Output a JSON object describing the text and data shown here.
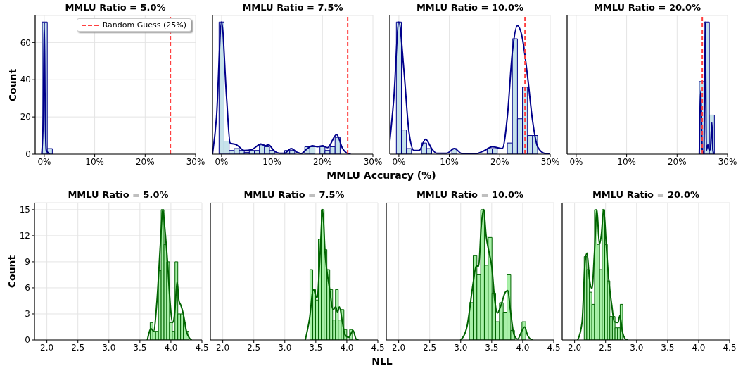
{
  "chart_data": [
    {
      "type": "histogram",
      "title": "MMLU Ratio = 5.0%",
      "ylabel": "Count",
      "xlim": [
        -1.8,
        30
      ],
      "ylim": [
        0,
        74.5
      ],
      "xticks": [
        {
          "value": 0,
          "label": "0%"
        },
        {
          "value": 10,
          "label": "10%"
        },
        {
          "value": 20,
          "label": "20%"
        },
        {
          "value": 30,
          "label": "30%"
        }
      ],
      "yticks": [
        0,
        20,
        40,
        60
      ],
      "grid": true,
      "legend": "top right",
      "ref_lines": [
        {
          "axis": "x",
          "value": 25,
          "label": "Random Guess (25%)",
          "color": "#ff4040",
          "line_style": "dashed"
        }
      ],
      "series": [
        {
          "type": "histogram",
          "bins": [
            -0.4,
            0.6,
            1.6
          ],
          "values": [
            71,
            3
          ],
          "color": "#c6e2ea"
        },
        {
          "type": "line",
          "marker": "none",
          "x": [
            -0.5,
            -0.2,
            0,
            0.2,
            0.4,
            0.7,
            1.0
          ],
          "values": [
            0,
            20,
            71,
            20,
            2,
            1,
            0
          ],
          "color": "#00008b"
        }
      ]
    },
    {
      "type": "histogram",
      "title": "MMLU Ratio = 7.5%",
      "xlabel": "MMLU Accuracy (%)",
      "tick_labels": "x",
      "xlim": [
        -1.8,
        30
      ],
      "ylim": [
        0,
        74.5
      ],
      "xticks": [
        {
          "value": 0,
          "label": "0%"
        },
        {
          "value": 10,
          "label": "10%"
        },
        {
          "value": 20,
          "label": "20%"
        },
        {
          "value": 30,
          "label": "30%"
        }
      ],
      "yticks": [
        0,
        20,
        40,
        60
      ],
      "grid": true,
      "ref_lines": [
        {
          "axis": "x",
          "value": 25,
          "color": "#ff4040",
          "line_style": "dashed"
        }
      ],
      "series": [
        {
          "type": "histogram",
          "bins": [
            -0.5,
            0.5,
            1.5,
            2.5,
            3.5,
            4.5,
            5.5,
            6.5,
            7.5,
            8.5,
            9.5,
            10.5,
            11.5,
            12.5,
            13.5,
            14.5,
            15.5,
            16.5,
            17.5,
            18.5,
            19.5,
            20.5,
            21.5,
            22.5,
            23.5
          ],
          "values": [
            71,
            7,
            2,
            3,
            2,
            1,
            2,
            2,
            5,
            4,
            2,
            0,
            0,
            2,
            2,
            0,
            0,
            4,
            4,
            0,
            4,
            2,
            4,
            9
          ],
          "color": "#c6e2ea"
        },
        {
          "type": "line",
          "marker": "none",
          "x": [
            -1.8,
            -1,
            0,
            1,
            1.7,
            3,
            4.5,
            6,
            7.8,
            8.6,
            9.3,
            10.5,
            11.5,
            12.5,
            13.8,
            15,
            15.8,
            17,
            18,
            19,
            20,
            21,
            22.8,
            24,
            25,
            25.5
          ],
          "values": [
            0,
            20,
            71,
            30,
            6,
            5,
            2,
            2.5,
            5.5,
            4.5,
            5,
            1.5,
            0.5,
            0.5,
            3,
            1,
            0.3,
            3,
            4.5,
            4,
            4.5,
            3.5,
            10.5,
            3,
            0.3,
            0
          ],
          "color": "#00008b"
        }
      ]
    },
    {
      "type": "histogram",
      "title": "MMLU Ratio = 10.0%",
      "tick_labels": "x",
      "xlim": [
        -1.8,
        30
      ],
      "ylim": [
        0,
        74.5
      ],
      "xticks": [
        {
          "value": 0,
          "label": "0%"
        },
        {
          "value": 10,
          "label": "10%"
        },
        {
          "value": 20,
          "label": "20%"
        },
        {
          "value": 30,
          "label": "30%"
        }
      ],
      "yticks": [
        0,
        20,
        40,
        60
      ],
      "grid": true,
      "ref_lines": [
        {
          "axis": "x",
          "value": 25,
          "color": "#ff4040",
          "line_style": "dashed"
        }
      ],
      "series": [
        {
          "type": "histogram",
          "bins": [
            -0.5,
            0.5,
            1.5,
            2.5,
            3.5,
            4.5,
            5.5,
            6.5,
            7.5,
            8.5,
            9.5,
            10.5,
            11.5,
            12.5,
            13.5,
            14.5,
            15.5,
            16.5,
            17.5,
            18.5,
            19.5,
            20.5,
            21.5,
            22.5,
            23.5,
            24.5,
            25.5,
            26.5,
            27.5
          ],
          "values": [
            71,
            13,
            3,
            0,
            0,
            6,
            3,
            0,
            0,
            0,
            0,
            3,
            0,
            0,
            0,
            0,
            0,
            0,
            3,
            3,
            0,
            0,
            6,
            62,
            19,
            36,
            10,
            10
          ],
          "color": "#c6e2ea"
        },
        {
          "type": "line",
          "marker": "none",
          "x": [
            -1.8,
            -1,
            0,
            1,
            2,
            3,
            4,
            5.3,
            6.5,
            7.5,
            9.5,
            11,
            12.5,
            15,
            17,
            18.5,
            20.5,
            21.5,
            22.5,
            23.5,
            24.5,
            25.5,
            26.5,
            27.5,
            29,
            30
          ],
          "values": [
            7,
            30,
            71,
            45,
            12,
            2,
            2,
            8,
            3,
            0.5,
            0.5,
            3,
            0.3,
            0,
            2,
            4,
            3,
            20,
            55,
            69,
            62,
            42,
            18,
            4,
            0.3,
            0
          ],
          "color": "#00008b"
        }
      ]
    },
    {
      "type": "histogram",
      "title": "MMLU Ratio = 20.0%",
      "tick_labels": "x",
      "xlim": [
        -1.8,
        30
      ],
      "ylim": [
        0,
        74.5
      ],
      "xticks": [
        {
          "value": 0,
          "label": "0%"
        },
        {
          "value": 10,
          "label": "10%"
        },
        {
          "value": 20,
          "label": "20%"
        },
        {
          "value": 30,
          "label": "30%"
        }
      ],
      "yticks": [
        0,
        20,
        40,
        60
      ],
      "grid": true,
      "ref_lines": [
        {
          "axis": "x",
          "value": 25,
          "color": "#ff4040",
          "line_style": "dashed"
        }
      ],
      "series": [
        {
          "type": "histogram",
          "bins": [
            24.4,
            25.4,
            26.4,
            27.4
          ],
          "values": [
            39,
            71,
            21
          ],
          "color": "#c6e2ea"
        },
        {
          "type": "line",
          "marker": "none",
          "x": [
            24.4,
            24.7,
            25.0,
            25.3,
            25.6,
            25.8,
            26.1,
            26.4,
            26.6,
            26.9,
            27.1,
            27.3
          ],
          "values": [
            0,
            34,
            2,
            0,
            71,
            2,
            5,
            2,
            3,
            17,
            2,
            0
          ],
          "color": "#00008b"
        }
      ]
    },
    {
      "type": "histogram",
      "title": "MMLU Ratio = 5.0%",
      "ylabel": "Count",
      "xlim": [
        1.8,
        4.5
      ],
      "ylim": [
        0,
        15.8
      ],
      "xticks": [
        {
          "value": 2,
          "label": "2.0"
        },
        2.5,
        {
          "value": 3,
          "label": "3.0"
        },
        3.5,
        {
          "value": 4,
          "label": "4.0"
        },
        4.5
      ],
      "yticks": [
        0,
        3,
        6,
        9,
        12,
        15
      ],
      "grid": true,
      "series": [
        {
          "type": "histogram",
          "bins": [
            3.665,
            3.71,
            3.754,
            3.799,
            3.843,
            3.888,
            3.933,
            3.977,
            4.022,
            4.066,
            4.111,
            4.156,
            4.2,
            4.245,
            4.289
          ],
          "values": [
            2,
            1,
            1,
            8,
            15,
            11,
            9,
            2,
            1,
            9,
            3,
            3,
            2,
            1
          ],
          "color": "#a8f0a8"
        },
        {
          "type": "line",
          "marker": "none",
          "x": [
            3.62,
            3.68,
            3.72,
            3.78,
            3.83,
            3.87,
            3.9,
            3.95,
            3.98,
            4.03,
            4.06,
            4.1,
            4.13,
            4.16,
            4.2,
            4.25,
            4.3,
            4.33
          ],
          "values": [
            0,
            1.3,
            1,
            5,
            11,
            15,
            13,
            8.5,
            5,
            2,
            3,
            6.7,
            4.5,
            4,
            3,
            1,
            0.2,
            0
          ],
          "color": "#006400"
        }
      ]
    },
    {
      "type": "histogram",
      "title": "MMLU Ratio = 7.5%",
      "xlabel": "NLL",
      "tick_labels": "x",
      "xlim": [
        1.8,
        4.5
      ],
      "ylim": [
        0,
        15.8
      ],
      "xticks": [
        {
          "value": 2,
          "label": "2.0"
        },
        2.5,
        {
          "value": 3,
          "label": "3.0"
        },
        3.5,
        {
          "value": 4,
          "label": "4.0"
        },
        4.5
      ],
      "yticks": [
        0,
        3,
        6,
        9,
        12,
        15
      ],
      "grid": true,
      "series": [
        {
          "type": "histogram",
          "bins": [
            3.405,
            3.451,
            3.496,
            3.542,
            3.588,
            3.634,
            3.679,
            3.725,
            3.771,
            3.816,
            3.862,
            3.908,
            3.953,
            3.999,
            4.045,
            4.091
          ],
          "values": [
            8.1,
            5.8,
            4.6,
            11.6,
            15,
            10.4,
            8.1,
            5.8,
            2.3,
            5.8,
            2.3,
            3.5,
            1.2,
            0,
            1.2
          ],
          "color": "#a8f0a8"
        },
        {
          "type": "line",
          "marker": "none",
          "x": [
            3.33,
            3.4,
            3.46,
            3.52,
            3.57,
            3.61,
            3.65,
            3.72,
            3.78,
            3.82,
            3.85,
            3.88,
            3.93,
            3.97,
            4.03,
            4.1,
            4.15,
            4.18
          ],
          "values": [
            0,
            2.5,
            5.8,
            4.8,
            10,
            15,
            10,
            6,
            3.5,
            3.8,
            3.2,
            3.8,
            2,
            0.6,
            0.3,
            1.1,
            0.1,
            0
          ],
          "color": "#006400"
        }
      ]
    },
    {
      "type": "histogram",
      "title": "MMLU Ratio = 10.0%",
      "tick_labels": "x",
      "xlim": [
        1.8,
        4.5
      ],
      "ylim": [
        0,
        15.8
      ],
      "xticks": [
        {
          "value": 2,
          "label": "2.0"
        },
        2.5,
        {
          "value": 3,
          "label": "3.0"
        },
        3.5,
        {
          "value": 4,
          "label": "4.0"
        },
        4.5
      ],
      "yticks": [
        0,
        3,
        6,
        9,
        12,
        15
      ],
      "grid": true,
      "series": [
        {
          "type": "histogram",
          "bins": [
            3.14,
            3.201,
            3.261,
            3.322,
            3.382,
            3.443,
            3.504,
            3.564,
            3.625,
            3.685,
            3.746,
            3.807,
            3.867,
            3.928,
            3.988,
            4.049
          ],
          "values": [
            4.3,
            9.7,
            7.5,
            15,
            8.6,
            11.8,
            5.4,
            2.1,
            4.3,
            3.2,
            7.5,
            1.1,
            0,
            0,
            2.1
          ],
          "color": "#a8f0a8"
        },
        {
          "type": "line",
          "marker": "none",
          "x": [
            3.0,
            3.1,
            3.2,
            3.25,
            3.29,
            3.33,
            3.37,
            3.41,
            3.46,
            3.5,
            3.55,
            3.59,
            3.65,
            3.72,
            3.76,
            3.8,
            3.86,
            3.92,
            3.97,
            4.03,
            4.08,
            4.15
          ],
          "values": [
            0,
            1.5,
            6.5,
            8.5,
            8.5,
            13,
            15,
            12,
            10,
            8.5,
            4.5,
            3.1,
            4,
            5.5,
            5.7,
            3.5,
            0.6,
            0.1,
            0.8,
            1.5,
            0.5,
            0
          ],
          "color": "#006400"
        }
      ]
    },
    {
      "type": "histogram",
      "title": "MMLU Ratio = 20.0%",
      "tick_labels": "x",
      "xlim": [
        1.8,
        4.5
      ],
      "ylim": [
        0,
        15.8
      ],
      "xticks": [
        {
          "value": 2,
          "label": "2.0"
        },
        2.5,
        {
          "value": 3,
          "label": "3.0"
        },
        3.5,
        {
          "value": 4,
          "label": "4.0"
        },
        4.5
      ],
      "yticks": [
        0,
        3,
        6,
        9,
        12,
        15
      ],
      "grid": true,
      "series": [
        {
          "type": "histogram",
          "bins": [
            2.155,
            2.196,
            2.238,
            2.279,
            2.321,
            2.362,
            2.403,
            2.445,
            2.486,
            2.528,
            2.569,
            2.61,
            2.652,
            2.693,
            2.735,
            2.776
          ],
          "values": [
            9.6,
            8.1,
            5.5,
            4.1,
            15,
            11,
            8.1,
            15,
            11,
            6.8,
            2.7,
            2.7,
            1.4,
            1.4,
            4.1
          ],
          "color": "#a8f0a8"
        },
        {
          "type": "line",
          "marker": "none",
          "x": [
            2.05,
            2.12,
            2.17,
            2.2,
            2.24,
            2.28,
            2.32,
            2.36,
            2.4,
            2.43,
            2.47,
            2.51,
            2.55,
            2.6,
            2.64,
            2.7,
            2.73,
            2.77,
            2.82,
            2.85
          ],
          "values": [
            0,
            2,
            9,
            10,
            7,
            5.9,
            10,
            15,
            11,
            12,
            15,
            11,
            7,
            4,
            2.1,
            2,
            2.8,
            1,
            0.1,
            0
          ],
          "color": "#006400"
        }
      ]
    }
  ]
}
